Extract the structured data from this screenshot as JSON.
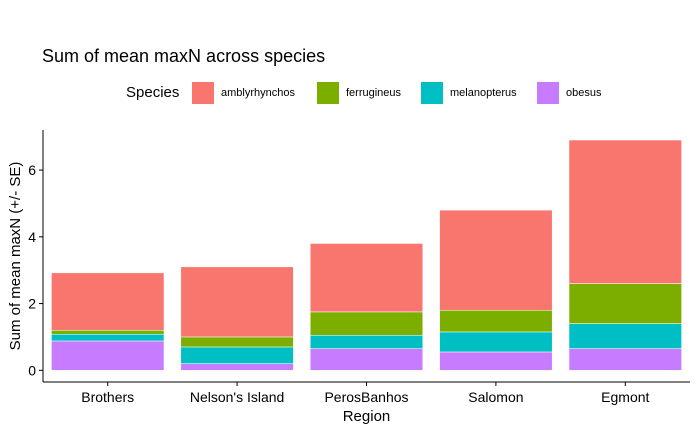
{
  "chart_data": {
    "type": "bar",
    "stacked": true,
    "title": "Sum of mean maxN across species",
    "xlabel": "Region",
    "ylabel": "Sum of mean maxN (+/- SE)",
    "ylim": [
      -0.35,
      7.2
    ],
    "yticks": [
      0,
      2,
      4,
      6
    ],
    "grid": false,
    "legend_position": "top",
    "legend_title": "Species",
    "categories": [
      "Brothers",
      "Nelson's Island",
      "PerosBanhos",
      "Salomon",
      "Egmont"
    ],
    "stack_order": [
      "obesus",
      "melanopterus",
      "ferrugineus",
      "amblyrhynchos"
    ],
    "series": [
      {
        "name": "amblyrhynchos",
        "color": "#F8766D",
        "values": [
          1.72,
          2.1,
          2.05,
          3.0,
          4.3
        ]
      },
      {
        "name": "ferrugineus",
        "color": "#7CAE00",
        "values": [
          0.12,
          0.3,
          0.7,
          0.65,
          1.2
        ]
      },
      {
        "name": "melanopterus",
        "color": "#00BFC4",
        "values": [
          0.2,
          0.5,
          0.4,
          0.6,
          0.75
        ]
      },
      {
        "name": "obesus",
        "color": "#C77CFF",
        "values": [
          0.88,
          0.2,
          0.65,
          0.55,
          0.65
        ]
      }
    ]
  }
}
